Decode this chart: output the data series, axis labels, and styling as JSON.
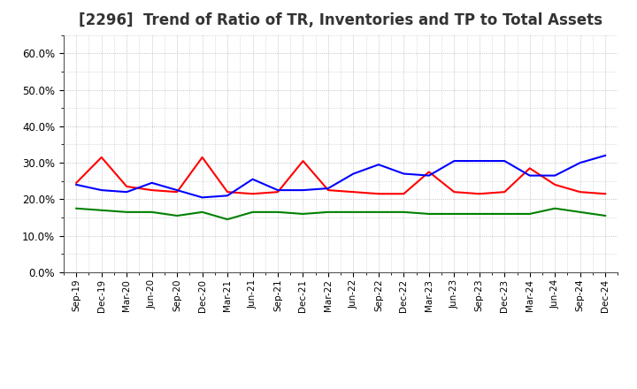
{
  "title": "[2296]  Trend of Ratio of TR, Inventories and TP to Total Assets",
  "labels": [
    "Sep-19",
    "Dec-19",
    "Mar-20",
    "Jun-20",
    "Sep-20",
    "Dec-20",
    "Mar-21",
    "Jun-21",
    "Sep-21",
    "Dec-21",
    "Mar-22",
    "Jun-22",
    "Sep-22",
    "Dec-22",
    "Mar-23",
    "Jun-23",
    "Sep-23",
    "Dec-23",
    "Mar-24",
    "Jun-24",
    "Sep-24",
    "Dec-24"
  ],
  "trade_receivables": [
    24.5,
    31.5,
    23.5,
    22.5,
    22.0,
    31.5,
    22.0,
    21.5,
    22.0,
    30.5,
    22.5,
    22.0,
    21.5,
    21.5,
    27.5,
    22.0,
    21.5,
    22.0,
    28.5,
    24.0,
    22.0,
    21.5
  ],
  "inventories": [
    24.0,
    22.5,
    22.0,
    24.5,
    22.5,
    20.5,
    21.0,
    25.5,
    22.5,
    22.5,
    23.0,
    27.0,
    29.5,
    27.0,
    26.5,
    30.5,
    30.5,
    30.5,
    26.5,
    26.5,
    30.0,
    32.0
  ],
  "trade_payables": [
    17.5,
    17.0,
    16.5,
    16.5,
    15.5,
    16.5,
    14.5,
    16.5,
    16.5,
    16.0,
    16.5,
    16.5,
    16.5,
    16.5,
    16.0,
    16.0,
    16.0,
    16.0,
    16.0,
    17.5,
    16.5,
    15.5
  ],
  "tr_color": "#ff0000",
  "inv_color": "#0000ff",
  "tp_color": "#008000",
  "ylim": [
    0,
    65
  ],
  "yticks": [
    0,
    10,
    20,
    30,
    40,
    50,
    60
  ],
  "background_color": "#ffffff",
  "grid_color": "#b0b0b0",
  "title_fontsize": 12,
  "title_color": "#333333"
}
